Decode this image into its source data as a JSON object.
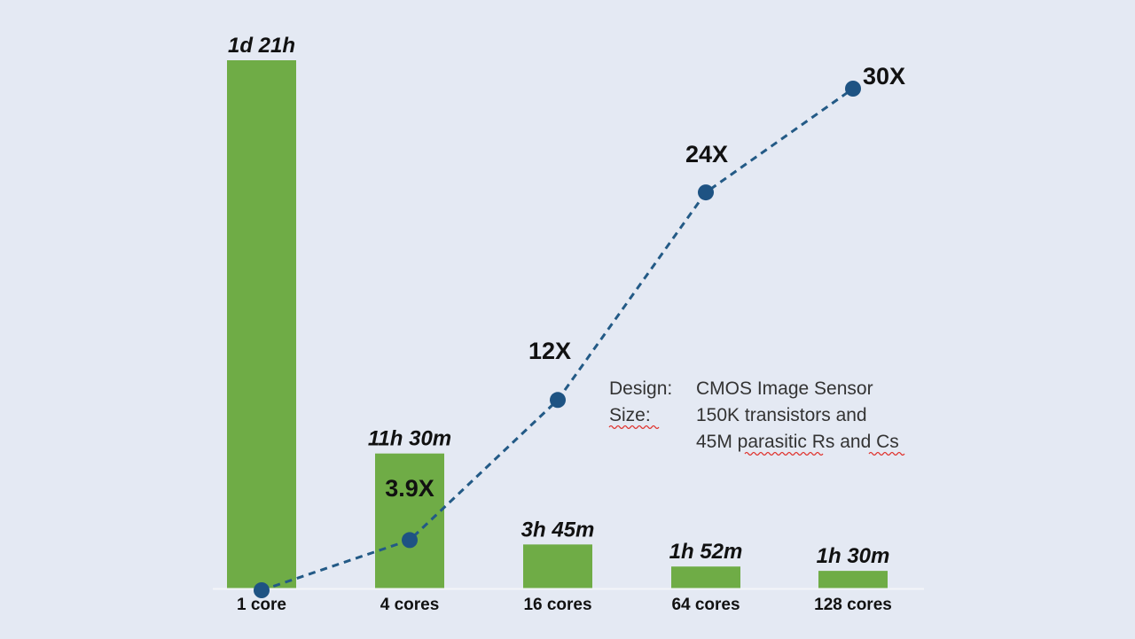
{
  "chart_data": {
    "type": "bar",
    "categories": [
      "1 core",
      "4 cores",
      "16 cores",
      "64 cores",
      "128 cores"
    ],
    "series": [
      {
        "values": [
          45,
          11.5,
          3.75,
          1.87,
          1.5
        ],
        "value_labels": [
          "1d 21h",
          "11h 30m",
          "3h 45m",
          "1h 52m",
          "1h 30m"
        ]
      },
      {
        "values": [
          1,
          3.9,
          12,
          24,
          30
        ],
        "value_labels": [
          "",
          "3.9X",
          "12X",
          "24X",
          "30X"
        ]
      }
    ],
    "title": "",
    "xlabel": "",
    "ylabel": "",
    "grid": false,
    "legend": "none"
  },
  "note": {
    "design_label": "Design:",
    "design_value": "CMOS Image Sensor",
    "size_label": "Size:",
    "size_value_1": "150K transistors and",
    "size_value_2": "45M parasitic Rs and Cs"
  },
  "colors": {
    "background": "#e4e9f3",
    "bar": "#6fac46",
    "line": "#235a86",
    "marker": "#1e5383",
    "baseline": "#dfe4ec"
  }
}
